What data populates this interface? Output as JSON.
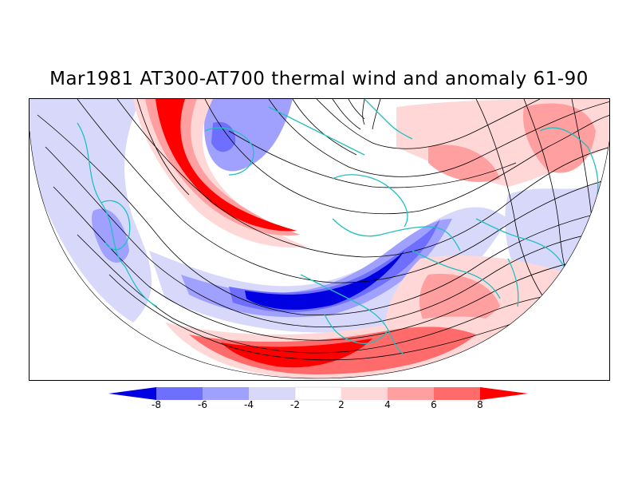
{
  "title": "Mar1981 AT300-AT700 thermal wind and anomaly 61-90",
  "colorbar": {
    "colors": [
      "#0000e0",
      "#6f6fff",
      "#a0a0ff",
      "#d8d8fb",
      "#ffffff",
      "#ffd7d7",
      "#ff9f9f",
      "#ff6b6b",
      "#ff0000"
    ],
    "labels": [
      "-8",
      "-6",
      "-4",
      "-2",
      "2",
      "4",
      "6",
      "8"
    ]
  },
  "coastline_color": "#20c0c0"
}
